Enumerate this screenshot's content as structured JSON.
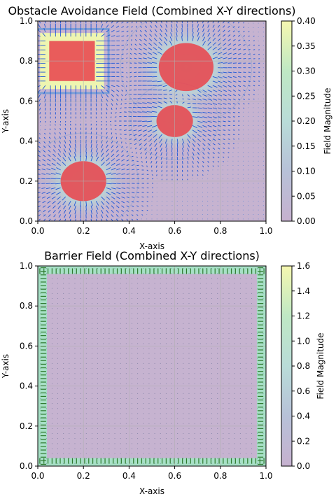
{
  "chart_data": [
    {
      "type": "heatmap",
      "title": "Obstacle Avoidance Field (Combined X-Y directions)",
      "xlabel": "X-axis",
      "ylabel": "Y-axis",
      "xlim": [
        0,
        1
      ],
      "ylim": [
        0,
        1
      ],
      "xticks": [
        "0.0",
        "0.2",
        "0.4",
        "0.6",
        "0.8",
        "1.0"
      ],
      "yticks": [
        "0.0",
        "0.2",
        "0.4",
        "0.6",
        "0.8",
        "1.0"
      ],
      "grid": true,
      "colorbar": {
        "label": "Field Magnitude",
        "range": [
          0,
          0.4
        ],
        "ticks": [
          "0.00",
          "0.05",
          "0.10",
          "0.15",
          "0.20",
          "0.25",
          "0.30",
          "0.35",
          "0.40"
        ]
      },
      "obstacles": [
        {
          "shape": "circle",
          "cx": 0.2,
          "cy": 0.2,
          "r": 0.1
        },
        {
          "shape": "circle",
          "cx": 0.65,
          "cy": 0.77,
          "r": 0.12
        },
        {
          "shape": "circle",
          "cx": 0.6,
          "cy": 0.5,
          "r": 0.08
        },
        {
          "shape": "square",
          "x0": 0.05,
          "y0": 0.7,
          "x1": 0.25,
          "y1": 0.9
        }
      ],
      "obstacle_color": "#e8474f"
    },
    {
      "type": "heatmap",
      "title": "Barrier Field (Combined X-Y directions)",
      "xlabel": "X-axis",
      "ylabel": "Y-axis",
      "xlim": [
        0,
        1
      ],
      "ylim": [
        0,
        1
      ],
      "xticks": [
        "0.0",
        "0.2",
        "0.4",
        "0.6",
        "0.8",
        "1.0"
      ],
      "yticks": [
        "0.0",
        "0.2",
        "0.4",
        "0.6",
        "0.8",
        "1.0"
      ],
      "grid": true,
      "colorbar": {
        "label": "Field Magnitude",
        "range": [
          0,
          1.6
        ],
        "ticks": [
          "0.0",
          "0.2",
          "0.4",
          "0.6",
          "0.8",
          "1.0",
          "1.2",
          "1.4",
          "1.6"
        ]
      },
      "barrier_width": 0.04
    }
  ]
}
